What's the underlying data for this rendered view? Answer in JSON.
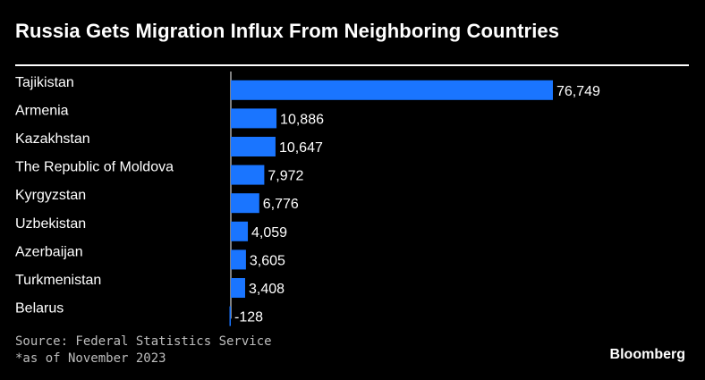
{
  "header": {
    "title": "Russia Gets Migration Influx From Neighboring Countries"
  },
  "footer": {
    "source": "Source: Federal Statistics Service",
    "note": "*as of November 2023",
    "brand": "Bloomberg"
  },
  "colors": {
    "bar": "#1a75ff",
    "background": "#000000",
    "text": "#ffffff"
  },
  "chart_data": {
    "type": "bar",
    "orientation": "horizontal",
    "categories": [
      "Tajikistan",
      "Armenia",
      "Kazakhstan",
      "The Republic of Moldova",
      "Kyrgyzstan",
      "Uzbekistan",
      "Azerbaijan",
      "Turkmenistan",
      "Belarus"
    ],
    "values": [
      76749,
      10886,
      10647,
      7972,
      6776,
      4059,
      3605,
      3408,
      -128
    ],
    "value_labels": [
      "76,749",
      "10,886",
      "10,647",
      "7,972",
      "6,776",
      "4,059",
      "3,605",
      "3,408",
      "-128"
    ],
    "title": "Russia Gets Migration Influx From Neighboring Countries",
    "xlabel": "",
    "ylabel": "",
    "grid": false
  }
}
